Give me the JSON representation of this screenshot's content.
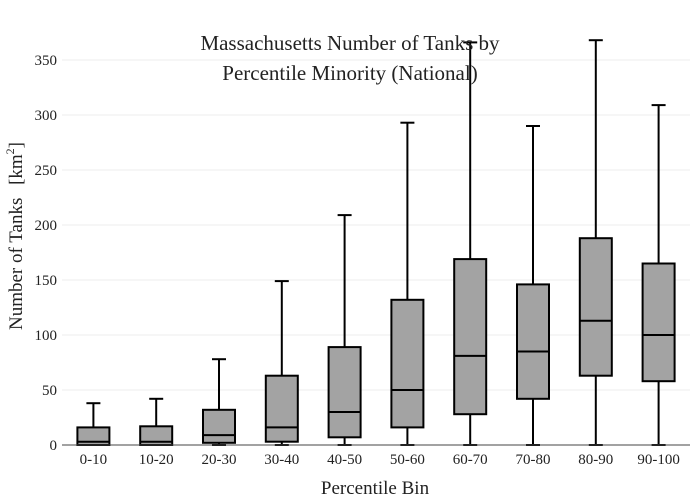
{
  "chart_data": {
    "type": "box",
    "title_lines": [
      "Massachusetts Number of Tanks by",
      "Percentile Minority (National)"
    ],
    "xlabel": "Percentile Bin",
    "ylabel": "Number of Tanks",
    "ylabel_unit_base": "[km",
    "ylabel_unit_sup": "2",
    "ylabel_unit_close": "]",
    "ylim": [
      0,
      370
    ],
    "yticks": [
      0,
      50,
      100,
      150,
      200,
      250,
      300,
      350
    ],
    "grid": true,
    "legend": false,
    "categories": [
      "0-10",
      "10-20",
      "20-30",
      "30-40",
      "40-50",
      "50-60",
      "60-70",
      "70-80",
      "80-90",
      "90-100"
    ],
    "boxes": [
      {
        "category": "0-10",
        "min": 0,
        "q1": 0,
        "median": 3,
        "q3": 16,
        "max": 38
      },
      {
        "category": "10-20",
        "min": 0,
        "q1": 0,
        "median": 3,
        "q3": 17,
        "max": 42
      },
      {
        "category": "20-30",
        "min": 0,
        "q1": 2,
        "median": 9,
        "q3": 32,
        "max": 78
      },
      {
        "category": "30-40",
        "min": 0,
        "q1": 3,
        "median": 16,
        "q3": 63,
        "max": 149
      },
      {
        "category": "40-50",
        "min": 0,
        "q1": 7,
        "median": 30,
        "q3": 89,
        "max": 209
      },
      {
        "category": "50-60",
        "min": 0,
        "q1": 16,
        "median": 50,
        "q3": 132,
        "max": 293
      },
      {
        "category": "60-70",
        "min": 0,
        "q1": 28,
        "median": 81,
        "q3": 169,
        "max": 366
      },
      {
        "category": "70-80",
        "min": 0,
        "q1": 42,
        "median": 85,
        "q3": 146,
        "max": 290
      },
      {
        "category": "80-90",
        "min": 0,
        "q1": 63,
        "median": 113,
        "q3": 188,
        "max": 368
      },
      {
        "category": "90-100",
        "min": 0,
        "q1": 58,
        "median": 100,
        "q3": 165,
        "max": 309
      }
    ],
    "colors": {
      "box_fill": "#a3a3a3",
      "line": "#000000",
      "grid": "#eeeeee"
    }
  }
}
